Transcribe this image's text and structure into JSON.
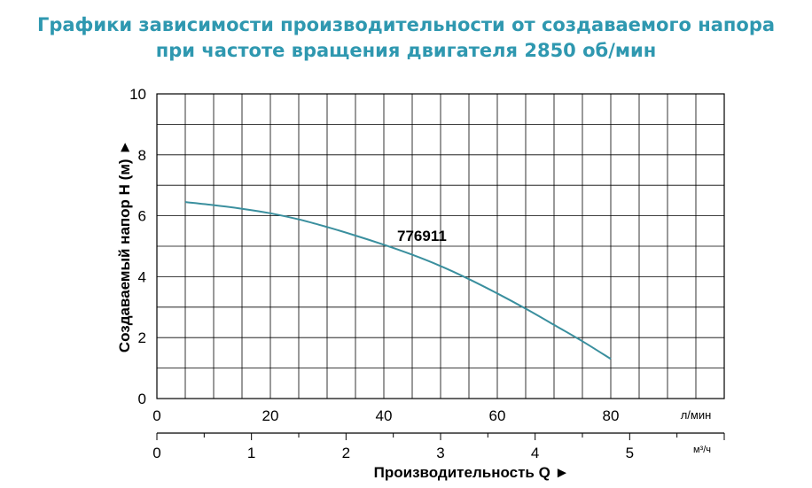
{
  "title": {
    "line1": "Графики зависимости производительности от создаваемого напора",
    "line2": "при частоте вращения двигателя 2850 об/мин"
  },
  "colors": {
    "title": "#2f98b0",
    "curve": "#3a8f9e",
    "grid": "#000000"
  },
  "chart_data": {
    "type": "line",
    "title": "Графики зависимости производительности от создаваемого напора при частоте вращения двигателя 2850 об/мин",
    "ylabel": "Создаваемый напор H (м) ►",
    "xlabel": "Производительность Q ►",
    "x_unit": "л/мин",
    "x2_unit": "м³/ч",
    "ylim": [
      0,
      10
    ],
    "xlim": [
      0,
      100
    ],
    "x2lim": [
      0,
      6
    ],
    "grid": true,
    "y_ticks": [
      "0",
      "2",
      "4",
      "6",
      "8",
      "10"
    ],
    "x_ticks": [
      "0",
      "20",
      "40",
      "60",
      "80"
    ],
    "x2_ticks": [
      "0",
      "1",
      "2",
      "3",
      "4",
      "5"
    ],
    "series": [
      {
        "name": "776911",
        "x": [
          5,
          10,
          15,
          20,
          25,
          30,
          35,
          40,
          45,
          50,
          55,
          60,
          65,
          70,
          75,
          80
        ],
        "y": [
          6.45,
          6.35,
          6.23,
          6.08,
          5.88,
          5.63,
          5.35,
          5.05,
          4.72,
          4.35,
          3.92,
          3.45,
          2.95,
          2.42,
          1.88,
          1.3
        ]
      }
    ]
  }
}
